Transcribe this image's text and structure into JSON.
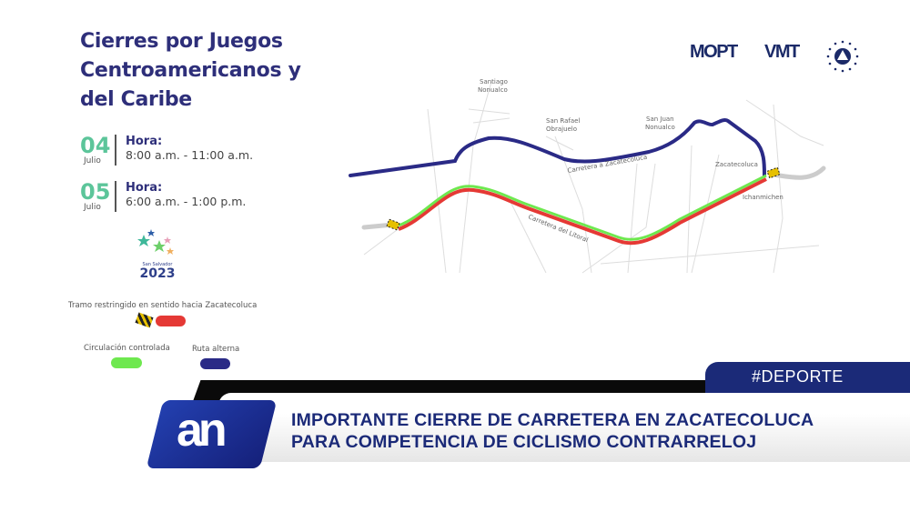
{
  "infographic": {
    "title_lines": [
      "Cierres por Juegos",
      "Centroamericanos y",
      "del Caribe"
    ],
    "schedule": [
      {
        "day": "04",
        "month": "Julio",
        "label": "Hora:",
        "time": "8:00 a.m. - 11:00 a.m."
      },
      {
        "day": "05",
        "month": "Julio",
        "label": "Hora:",
        "time": "6:00 a.m. - 1:00 p.m."
      }
    ],
    "event_logo": {
      "place": "San Salvador",
      "year": "2023"
    },
    "legend": {
      "restricted": {
        "label": "Tramo restringido en sentido hacia Zacatecoluca",
        "color": "#e53935"
      },
      "controlled": {
        "label": "Circulación controlada",
        "color": "#6ee84f"
      },
      "alternate": {
        "label": "Ruta alterna",
        "color": "#2a2a86"
      }
    },
    "logos": {
      "mopt": "MOPT",
      "vmt": "VMT"
    },
    "map": {
      "places": [
        "Santiago",
        "Nonualco",
        "San Rafael",
        "Obrajuelo",
        "San Juan",
        "Nonualco",
        "Zacatecoluca",
        "Ichanmichen"
      ],
      "roads": [
        "Carretera a Zacatecoluca",
        "Carretera del Litoral"
      ]
    }
  },
  "lower_third": {
    "tag": "#DEPORTE",
    "channel_logo": "an",
    "headline_lines": [
      "IMPORTANTE CIERRE DE CARRETERA EN ZACATECOLUCA",
      "PARA COMPETENCIA DE CICLISMO CONTRARRELOJ"
    ],
    "colors": {
      "brand": "#1b2a78",
      "bar": "#0a0a0a"
    }
  }
}
